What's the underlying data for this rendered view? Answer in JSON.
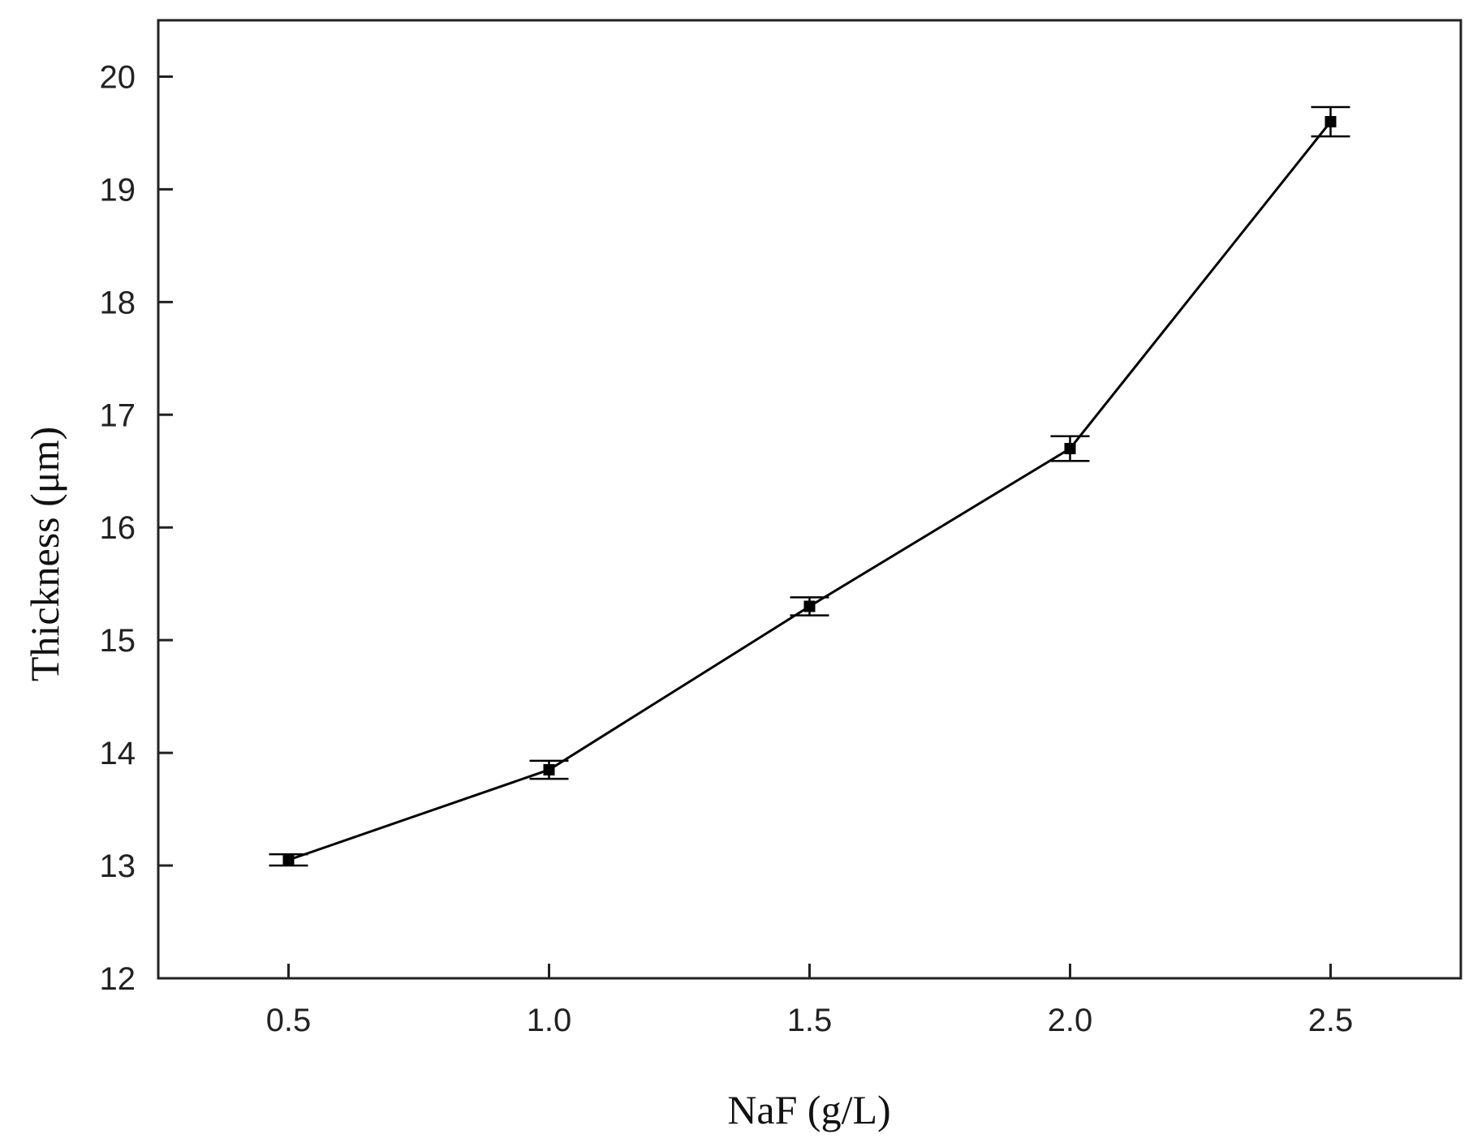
{
  "chart_data": {
    "type": "line",
    "title": "",
    "xlabel": "NaF (g/L)",
    "ylabel": "Thickness (μm)",
    "xlim": [
      0.25,
      2.75
    ],
    "ylim": [
      12,
      20.5
    ],
    "x_ticks": [
      "0.5",
      "1.0",
      "1.5",
      "2.0",
      "2.5"
    ],
    "y_ticks": [
      "12",
      "13",
      "14",
      "15",
      "16",
      "17",
      "18",
      "19",
      "20"
    ],
    "grid": false,
    "legend": "none",
    "series": [
      {
        "x": [
          0.5,
          1.0,
          1.5,
          2.0,
          2.5
        ],
        "y": [
          13.05,
          13.85,
          15.3,
          16.7,
          19.6
        ],
        "error": [
          0.05,
          0.08,
          0.08,
          0.11,
          0.13
        ],
        "marker": "square",
        "color": "#000000"
      }
    ]
  }
}
